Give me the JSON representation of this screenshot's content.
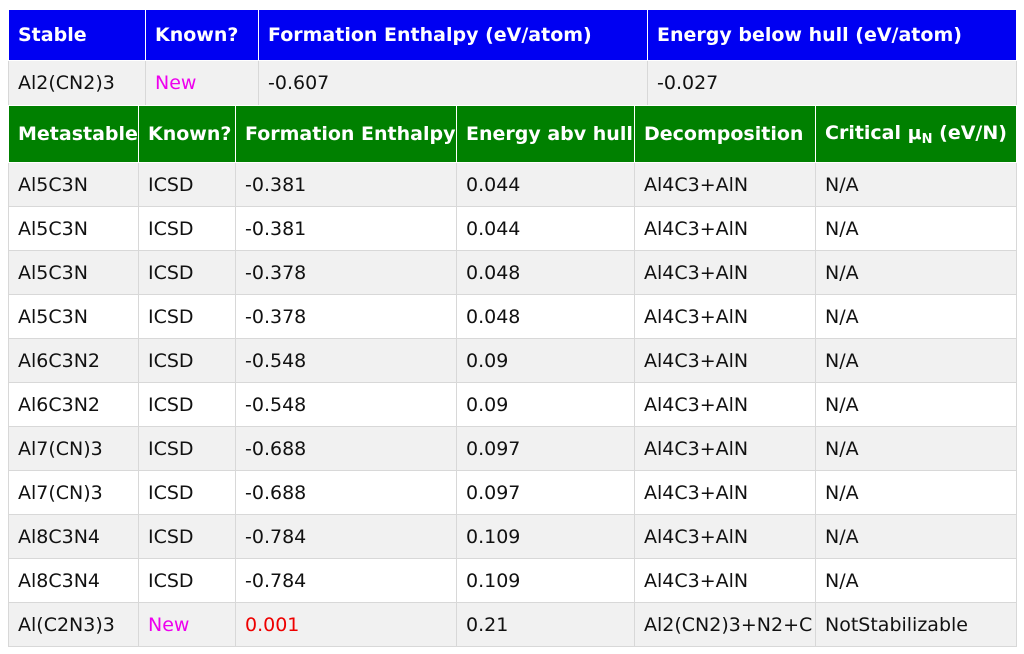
{
  "colors": {
    "stable_header": "#0000f2",
    "meta_header": "#008000",
    "new_label": "#ee00ee",
    "positive_value": "#ee0000"
  },
  "stable": {
    "headers": [
      "Stable",
      "Known?",
      "Formation Enthalpy (eV/atom)",
      "Energy below hull (eV/atom)"
    ],
    "row": {
      "formula": "Al2(CN2)3",
      "known": "New",
      "formation": "-0.607",
      "hull": "-0.027"
    }
  },
  "metastable": {
    "headers": [
      "Metastable",
      "Known?",
      "Formation Enthalpy",
      "Energy abv hull",
      "Decomposition"
    ],
    "critical_label": "Critical μ",
    "critical_sub": "N",
    "critical_unit": " (eV/N)",
    "rows": [
      {
        "formula": "Al5C3N",
        "known": "ICSD",
        "formation": "-0.381",
        "hull": "0.044",
        "decomposition": "Al4C3+AlN",
        "critical": "N/A"
      },
      {
        "formula": "Al5C3N",
        "known": "ICSD",
        "formation": "-0.381",
        "hull": "0.044",
        "decomposition": "Al4C3+AlN",
        "critical": "N/A"
      },
      {
        "formula": "Al5C3N",
        "known": "ICSD",
        "formation": "-0.378",
        "hull": "0.048",
        "decomposition": "Al4C3+AlN",
        "critical": "N/A"
      },
      {
        "formula": "Al5C3N",
        "known": "ICSD",
        "formation": "-0.378",
        "hull": "0.048",
        "decomposition": "Al4C3+AlN",
        "critical": "N/A"
      },
      {
        "formula": "Al6C3N2",
        "known": "ICSD",
        "formation": "-0.548",
        "hull": "0.09",
        "decomposition": "Al4C3+AlN",
        "critical": "N/A"
      },
      {
        "formula": "Al6C3N2",
        "known": "ICSD",
        "formation": "-0.548",
        "hull": "0.09",
        "decomposition": "Al4C3+AlN",
        "critical": "N/A"
      },
      {
        "formula": "Al7(CN)3",
        "known": "ICSD",
        "formation": "-0.688",
        "hull": "0.097",
        "decomposition": "Al4C3+AlN",
        "critical": "N/A"
      },
      {
        "formula": "Al7(CN)3",
        "known": "ICSD",
        "formation": "-0.688",
        "hull": "0.097",
        "decomposition": "Al4C3+AlN",
        "critical": "N/A"
      },
      {
        "formula": "Al8C3N4",
        "known": "ICSD",
        "formation": "-0.784",
        "hull": "0.109",
        "decomposition": "Al4C3+AlN",
        "critical": "N/A"
      },
      {
        "formula": "Al8C3N4",
        "known": "ICSD",
        "formation": "-0.784",
        "hull": "0.109",
        "decomposition": "Al4C3+AlN",
        "critical": "N/A"
      },
      {
        "formula": "Al(C2N3)3",
        "known": "New",
        "formation": "0.001",
        "hull": "0.21",
        "decomposition": "Al2(CN2)3+N2+C",
        "critical": "NotStabilizable"
      }
    ]
  }
}
